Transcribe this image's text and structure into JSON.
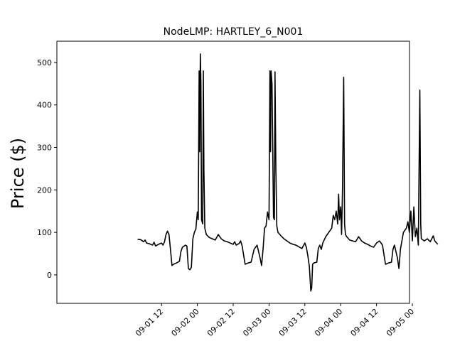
{
  "chart_data": {
    "type": "line",
    "title": "NodeLMP: HARTLEY_6_N001",
    "xlabel": "",
    "ylabel": "Price ($)",
    "xlim": [
      -0.96,
      3.96
    ],
    "ylim": [
      -67,
      550
    ],
    "x_unit": "hours from 2023-09-01 00:00",
    "x_ticks": [
      {
        "value": 12,
        "label": "09-01 12"
      },
      {
        "value": 24,
        "label": "09-02 00"
      },
      {
        "value": 36,
        "label": "09-02 12"
      },
      {
        "value": 48,
        "label": "09-03 00"
      },
      {
        "value": 60,
        "label": "09-03 12"
      },
      {
        "value": 72,
        "label": "09-04 00"
      },
      {
        "value": 84,
        "label": "09-04 12"
      },
      {
        "value": 96,
        "label": "09-05 00"
      }
    ],
    "y_ticks": [
      0,
      100,
      200,
      300,
      400,
      500
    ],
    "grid": false,
    "series": [
      {
        "name": "",
        "color": "#000000",
        "points": [
          [
            4.0,
            84
          ],
          [
            5.0,
            83
          ],
          [
            6.0,
            78
          ],
          [
            6.5,
            82
          ],
          [
            7.0,
            75
          ],
          [
            8.0,
            73
          ],
          [
            9.0,
            70
          ],
          [
            9.5,
            77
          ],
          [
            10.0,
            68
          ],
          [
            11.0,
            72
          ],
          [
            12.0,
            75
          ],
          [
            12.5,
            70
          ],
          [
            13.0,
            78
          ],
          [
            13.5,
            95
          ],
          [
            14.0,
            103
          ],
          [
            14.5,
            95
          ],
          [
            15.0,
            60
          ],
          [
            15.5,
            22
          ],
          [
            16.0,
            25
          ],
          [
            17.0,
            28
          ],
          [
            18.0,
            32
          ],
          [
            18.5,
            55
          ],
          [
            19.0,
            65
          ],
          [
            20.0,
            70
          ],
          [
            20.5,
            68
          ],
          [
            21.0,
            15
          ],
          [
            21.5,
            12
          ],
          [
            22.0,
            18
          ],
          [
            22.5,
            85
          ],
          [
            23.0,
            100
          ],
          [
            23.5,
            108
          ],
          [
            24.0,
            148
          ],
          [
            24.3,
            130
          ],
          [
            24.6,
            480
          ],
          [
            24.8,
            290
          ],
          [
            25.0,
            520
          ],
          [
            25.2,
            450
          ],
          [
            25.4,
            130
          ],
          [
            25.8,
            120
          ],
          [
            26.0,
            480
          ],
          [
            26.2,
            245
          ],
          [
            26.5,
            110
          ],
          [
            27.0,
            95
          ],
          [
            28.0,
            88
          ],
          [
            29.0,
            85
          ],
          [
            30.0,
            82
          ],
          [
            31.0,
            95
          ],
          [
            32.0,
            85
          ],
          [
            33.0,
            80
          ],
          [
            34.0,
            78
          ],
          [
            35.0,
            75
          ],
          [
            36.0,
            72
          ],
          [
            36.5,
            78
          ],
          [
            37.0,
            70
          ],
          [
            38.0,
            74
          ],
          [
            38.5,
            80
          ],
          [
            39.0,
            68
          ],
          [
            40.0,
            25
          ],
          [
            41.0,
            28
          ],
          [
            42.0,
            30
          ],
          [
            43.0,
            60
          ],
          [
            44.0,
            70
          ],
          [
            45.0,
            40
          ],
          [
            45.5,
            22
          ],
          [
            46.0,
            60
          ],
          [
            46.5,
            110
          ],
          [
            47.0,
            115
          ],
          [
            47.5,
            148
          ],
          [
            48.0,
            130
          ],
          [
            48.3,
            480
          ],
          [
            48.5,
            290
          ],
          [
            48.7,
            480
          ],
          [
            49.0,
            450
          ],
          [
            49.5,
            135
          ],
          [
            49.8,
            130
          ],
          [
            50.0,
            478
          ],
          [
            50.3,
            245
          ],
          [
            50.6,
            115
          ],
          [
            51.0,
            100
          ],
          [
            52.0,
            92
          ],
          [
            53.0,
            85
          ],
          [
            54.0,
            80
          ],
          [
            55.0,
            75
          ],
          [
            56.0,
            72
          ],
          [
            57.0,
            70
          ],
          [
            58.0,
            66
          ],
          [
            59.0,
            62
          ],
          [
            60.0,
            75
          ],
          [
            60.5,
            65
          ],
          [
            61.0,
            45
          ],
          [
            61.5,
            20
          ],
          [
            62.0,
            -38
          ],
          [
            62.3,
            -30
          ],
          [
            62.6,
            25
          ],
          [
            63.0,
            28
          ],
          [
            64.0,
            30
          ],
          [
            64.5,
            62
          ],
          [
            65.0,
            70
          ],
          [
            65.5,
            60
          ],
          [
            66.0,
            75
          ],
          [
            67.0,
            90
          ],
          [
            68.0,
            100
          ],
          [
            69.0,
            110
          ],
          [
            69.5,
            140
          ],
          [
            70.0,
            130
          ],
          [
            70.5,
            150
          ],
          [
            71.0,
            120
          ],
          [
            71.3,
            190
          ],
          [
            71.6,
            130
          ],
          [
            72.0,
            160
          ],
          [
            72.3,
            95
          ],
          [
            72.6,
            200
          ],
          [
            73.0,
            465
          ],
          [
            73.3,
            120
          ],
          [
            73.6,
            95
          ],
          [
            74.0,
            90
          ],
          [
            75.0,
            82
          ],
          [
            76.0,
            80
          ],
          [
            77.0,
            78
          ],
          [
            78.0,
            90
          ],
          [
            79.0,
            80
          ],
          [
            80.0,
            75
          ],
          [
            81.0,
            72
          ],
          [
            82.0,
            68
          ],
          [
            83.0,
            65
          ],
          [
            84.0,
            75
          ],
          [
            85.0,
            80
          ],
          [
            86.0,
            70
          ],
          [
            87.0,
            25
          ],
          [
            88.0,
            28
          ],
          [
            89.0,
            30
          ],
          [
            89.5,
            60
          ],
          [
            90.0,
            70
          ],
          [
            91.0,
            40
          ],
          [
            91.5,
            15
          ],
          [
            92.0,
            60
          ],
          [
            93.0,
            100
          ],
          [
            94.0,
            110
          ],
          [
            94.5,
            125
          ],
          [
            95.0,
            100
          ],
          [
            95.5,
            150
          ],
          [
            96.0,
            80
          ],
          [
            96.5,
            160
          ],
          [
            97.0,
            90
          ],
          [
            97.5,
            110
          ],
          [
            98.0,
            70
          ],
          [
            98.5,
            435
          ],
          [
            98.8,
            120
          ],
          [
            99.0,
            85
          ],
          [
            100.0,
            80
          ],
          [
            101.0,
            85
          ],
          [
            102.0,
            78
          ],
          [
            103.0,
            92
          ],
          [
            103.5,
            80
          ],
          [
            104.0,
            76
          ],
          [
            104.5,
            72
          ]
        ]
      }
    ]
  }
}
